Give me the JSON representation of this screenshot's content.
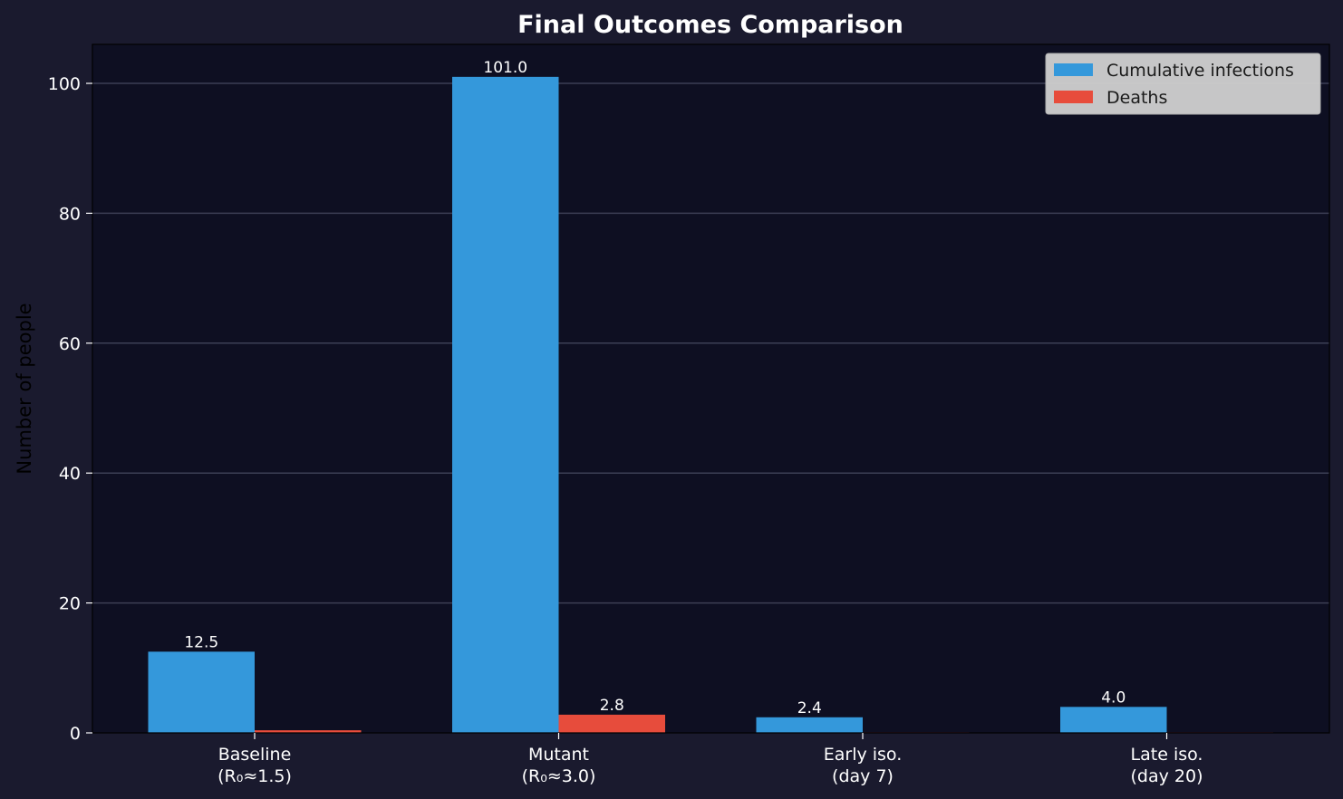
{
  "chart_data": {
    "type": "bar",
    "title": "Final Outcomes Comparison",
    "xlabel": "",
    "ylabel": "Number of people",
    "ylim": [
      0,
      106
    ],
    "yticks": [
      0,
      20,
      40,
      60,
      80,
      100
    ],
    "grid": "y",
    "legend": "top-right",
    "categories": [
      [
        "Baseline",
        "(R₀≈1.5)"
      ],
      [
        "Mutant",
        "(R₀≈3.0)"
      ],
      [
        "Early iso.",
        "(day 7)"
      ],
      [
        "Late iso.",
        "(day 20)"
      ]
    ],
    "series": [
      {
        "name": "Cumulative infections",
        "color": "#3498db",
        "values": [
          12.5,
          101.0,
          2.4,
          4.0
        ],
        "labels": [
          "12.5",
          "101.0",
          "2.4",
          "4.0"
        ]
      },
      {
        "name": "Deaths",
        "color": "#e74c3c",
        "values": [
          0.4,
          2.8,
          0.05,
          0.08
        ],
        "labels": [
          "",
          "2.8",
          "",
          ""
        ]
      }
    ]
  },
  "colors": {
    "figure_bg": "#1a1a2e",
    "plot_bg": "#0e0f22",
    "grid": "#3c3f55",
    "text": "#ffffff",
    "ylabel": "#000000",
    "legend_bg": "#cccccc"
  }
}
